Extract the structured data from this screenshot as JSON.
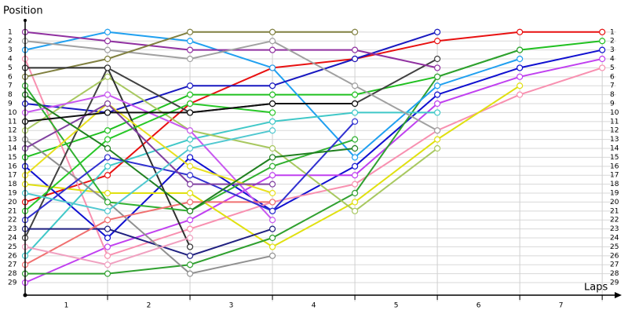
{
  "chart_data": {
    "type": "line",
    "y_label": "Position",
    "x_label": "Laps",
    "x": [
      0,
      1,
      2,
      3,
      4,
      5,
      6,
      7
    ],
    "xlim": [
      0,
      7.17
    ],
    "xticks": [
      {
        "value": 0.5,
        "label": "1"
      },
      {
        "value": 1.5,
        "label": "2"
      },
      {
        "value": 2.5,
        "label": "3"
      },
      {
        "value": 3.5,
        "label": "4"
      },
      {
        "value": 4.5,
        "label": "5"
      },
      {
        "value": 5.5,
        "label": "6"
      },
      {
        "value": 6.5,
        "label": "7"
      }
    ],
    "ylim": [
      30.4,
      -0.3
    ],
    "yticks": [
      1,
      2,
      3,
      4,
      5,
      6,
      7,
      8,
      9,
      10,
      11,
      12,
      13,
      14,
      15,
      16,
      17,
      18,
      19,
      20,
      21,
      22,
      23,
      24,
      25,
      26,
      27,
      28,
      29
    ],
    "grid": true,
    "series": [
      {
        "color": "#e81010",
        "values": [
          20,
          17,
          9,
          5,
          4,
          2,
          1,
          1
        ]
      },
      {
        "color": "#20c020",
        "values": [
          15,
          12,
          8,
          8,
          8,
          6,
          3,
          2
        ]
      },
      {
        "color": "#1010d0",
        "values": [
          16,
          24,
          15,
          21,
          16,
          8,
          5,
          3
        ]
      },
      {
        "color": "#c040f0",
        "values": [
          29,
          25,
          22,
          17,
          17,
          9,
          6,
          4
        ]
      },
      {
        "color": "#f890b0",
        "values": [
          4,
          26,
          23,
          20,
          18,
          12,
          8,
          5
        ]
      },
      {
        "color": "#e0e010",
        "values": [
          18,
          19,
          19,
          25,
          20,
          13,
          7,
          null
        ]
      },
      {
        "color": "#30a030",
        "values": [
          28,
          28,
          27,
          24,
          19,
          6,
          3,
          null
        ]
      },
      {
        "color": "#20a0f0",
        "values": [
          3,
          1,
          2,
          5,
          15,
          7,
          4,
          null
        ]
      },
      {
        "color": "#1818c0",
        "values": [
          9,
          10,
          7,
          7,
          4,
          1,
          null,
          null
        ]
      },
      {
        "color": "#404040",
        "values": [
          24,
          5,
          10,
          9,
          9,
          4,
          null,
          null
        ]
      },
      {
        "color": "#9030a0",
        "values": [
          1,
          2,
          3,
          3,
          3,
          5,
          null,
          null
        ]
      },
      {
        "color": "#40c8c8",
        "values": [
          26,
          16,
          13,
          11,
          10,
          10,
          null,
          null
        ]
      },
      {
        "color": "#a0a0a0",
        "values": [
          2,
          3,
          4,
          2,
          7,
          12,
          null,
          null
        ]
      },
      {
        "color": "#a8c860",
        "values": [
          12,
          6,
          12,
          14,
          21,
          14,
          null,
          null
        ]
      },
      {
        "color": "#808040",
        "values": [
          6,
          4,
          1,
          1,
          1,
          null,
          null,
          null
        ]
      },
      {
        "color": "#303030",
        "values": [
          5,
          5,
          25,
          null,
          null,
          null,
          null,
          null
        ]
      },
      {
        "color": "#202080",
        "values": [
          23,
          23,
          26,
          23,
          null,
          null,
          null,
          null
        ]
      },
      {
        "color": "#909090",
        "values": [
          13,
          20,
          28,
          26,
          null,
          null,
          null,
          null
        ]
      },
      {
        "color": "#30b030",
        "values": [
          7,
          20,
          21,
          16,
          13,
          null,
          null,
          null
        ]
      },
      {
        "color": "#c858f0",
        "values": [
          10,
          8,
          12,
          22,
          null,
          null,
          null,
          null
        ]
      },
      {
        "color": "#e8e020",
        "values": [
          17,
          9,
          16,
          19,
          null,
          null,
          null,
          null
        ]
      },
      {
        "color": "#f07070",
        "values": [
          27,
          22,
          20,
          20,
          null,
          null,
          null,
          null
        ]
      },
      {
        "color": "#3030d0",
        "values": [
          22,
          15,
          17,
          21,
          11,
          null,
          null,
          null
        ]
      },
      {
        "color": "#28c828",
        "values": [
          21,
          13,
          9,
          10,
          null,
          null,
          null,
          null
        ]
      },
      {
        "color": "#8040a0",
        "values": [
          14,
          9,
          18,
          18,
          null,
          null,
          null,
          null
        ]
      },
      {
        "color": "#208020",
        "values": [
          8,
          14,
          21,
          15,
          14,
          null,
          null,
          null
        ]
      },
      {
        "color": "#f0a0c0",
        "values": [
          25,
          27,
          24,
          null,
          null,
          null,
          null,
          null
        ]
      },
      {
        "color": "#50c8d0",
        "values": [
          19,
          21,
          14,
          12,
          null,
          null,
          null,
          null
        ]
      },
      {
        "color": "#101010",
        "values": [
          11,
          10,
          10,
          9,
          9,
          null,
          null,
          null
        ]
      }
    ]
  }
}
